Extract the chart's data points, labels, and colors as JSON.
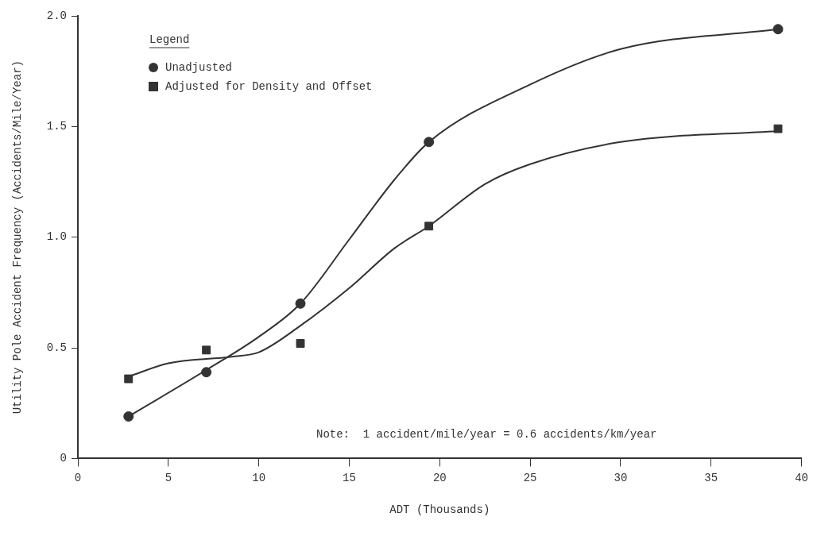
{
  "chart_data": {
    "type": "scatter",
    "xlabel": "ADT (Thousands)",
    "ylabel": "Utility Pole Accident Frequency (Accidents/Mile/Year)",
    "legend_title": "Legend",
    "legend": "top left",
    "grid": false,
    "xlim": [
      0,
      40
    ],
    "xticks": [
      0,
      5,
      10,
      15,
      20,
      25,
      30,
      35,
      40
    ],
    "ylim": [
      0,
      2
    ],
    "yticks": [
      0,
      {
        "value": 0.5,
        "label": "0.5"
      },
      {
        "value": 1,
        "label": "1.0"
      },
      {
        "value": 1.5,
        "label": "1.5"
      },
      {
        "value": 2,
        "label": "2.0"
      }
    ],
    "annotations": [
      "Note:  1 accident/mile/year = 0.6 accidents/km/year"
    ],
    "series": [
      {
        "name": "Unadjusted",
        "type": "scatter",
        "marker": "circle",
        "color": "#333333",
        "x": [
          2.8,
          7.1,
          12.3,
          19.4,
          38.7
        ],
        "values": [
          0.19,
          0.39,
          0.7,
          1.43,
          1.94
        ]
      },
      {
        "name": "Adjusted for Density and Offset",
        "type": "scatter",
        "marker": "square",
        "color": "#333333",
        "x": [
          2.8,
          7.1,
          12.3,
          19.4,
          38.7
        ],
        "values": [
          0.36,
          0.49,
          0.52,
          1.05,
          1.49
        ]
      },
      {
        "type": "line",
        "marker": "none",
        "color": "#333333",
        "x": [
          2.8,
          7.1,
          10,
          12.3,
          15,
          17.5,
          19.4,
          25,
          30,
          38.7
        ],
        "values": [
          0.19,
          0.4,
          0.55,
          0.7,
          0.99,
          1.26,
          1.43,
          1.69,
          1.85,
          1.94
        ]
      },
      {
        "type": "line",
        "marker": "none",
        "color": "#333333",
        "x": [
          2.8,
          5,
          8.5,
          10,
          12.3,
          15,
          17.5,
          19.4,
          22.5,
          25,
          30,
          38.7
        ],
        "values": [
          0.37,
          0.43,
          0.46,
          0.48,
          0.6,
          0.77,
          0.95,
          1.05,
          1.24,
          1.33,
          1.43,
          1.48
        ]
      }
    ]
  }
}
